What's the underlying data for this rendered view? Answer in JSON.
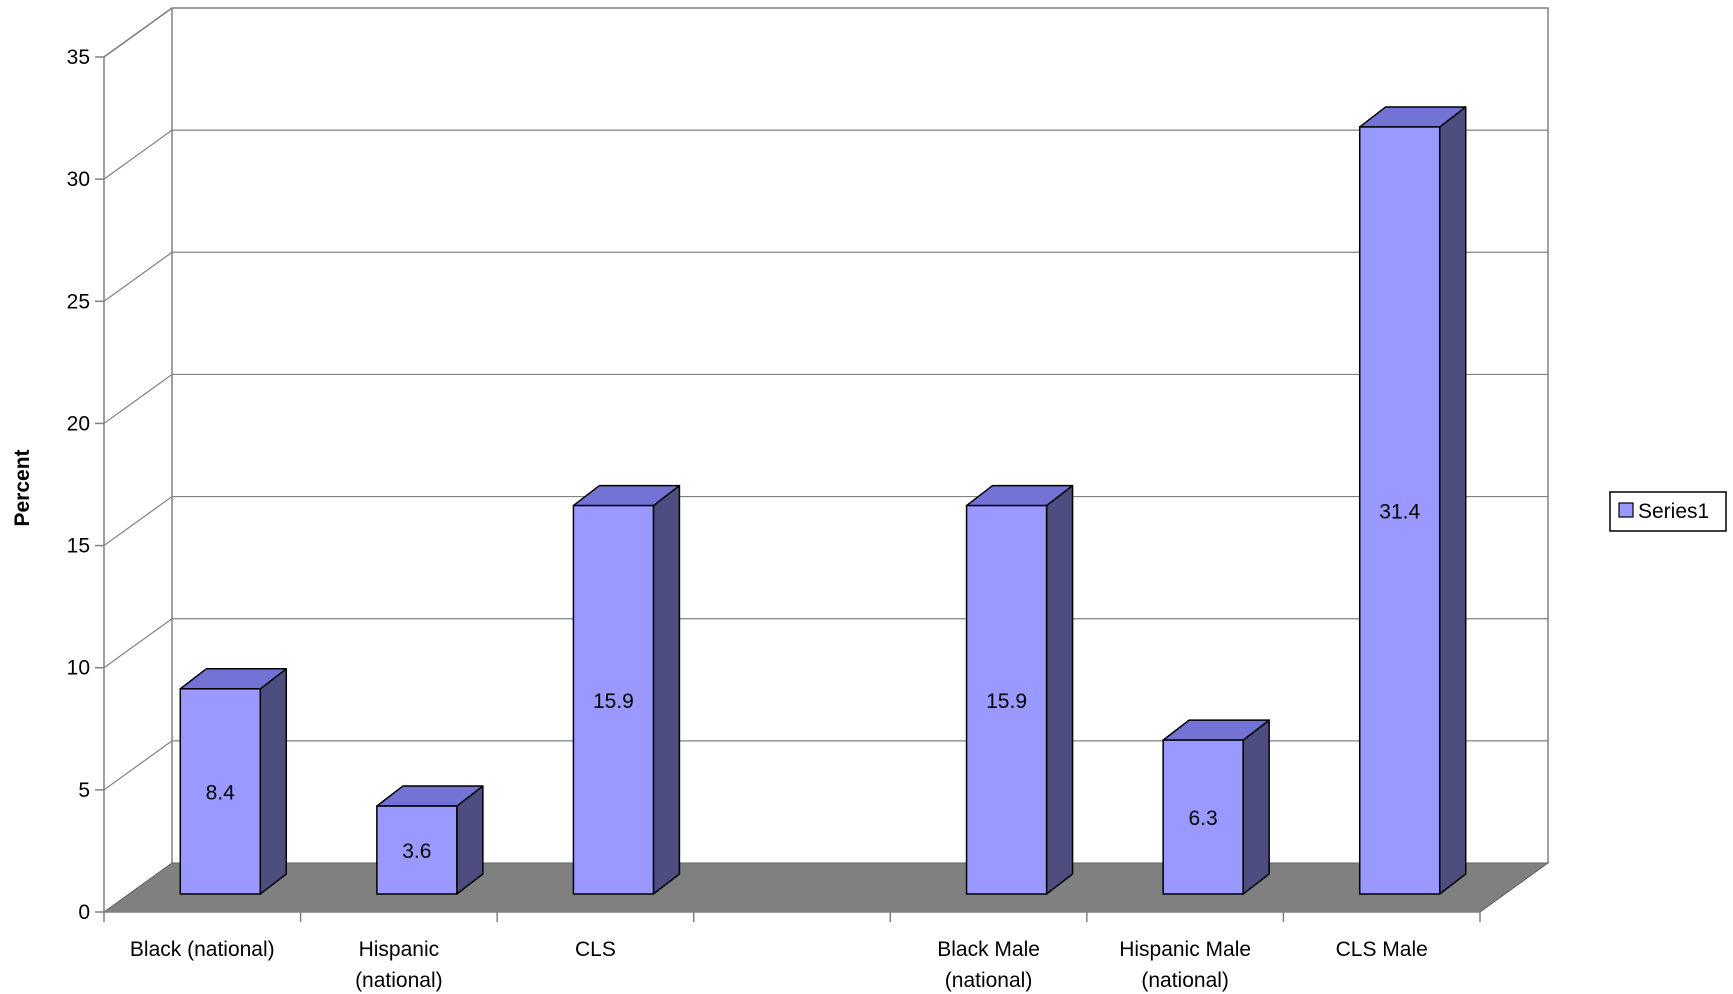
{
  "chart_data": {
    "type": "bar",
    "title": "",
    "xlabel": "",
    "ylabel": "Percent",
    "ylim": [
      0,
      35
    ],
    "yticks": [
      0,
      5,
      10,
      15,
      20,
      25,
      30,
      35
    ],
    "grid": true,
    "legend_position": "right",
    "categories": [
      [
        "Black (national)"
      ],
      [
        "Hispanic",
        "(national)"
      ],
      [
        "CLS"
      ],
      [],
      [
        "Black Male",
        "(national)"
      ],
      [
        "Hispanic Male",
        "(national)"
      ],
      [
        "CLS Male"
      ]
    ],
    "series": [
      {
        "name": "Series1",
        "values": [
          8.4,
          3.6,
          15.9,
          null,
          15.9,
          6.3,
          31.4
        ],
        "labels": [
          "8.4",
          "3.6",
          "15.9",
          "",
          "15.9",
          "6.3",
          "31.4"
        ]
      }
    ],
    "colors": {
      "bar_front": "#9999ff",
      "bar_top": "#7373d6",
      "bar_side": "#4d4d80",
      "floor": "#808080",
      "grid": "#808080"
    }
  }
}
